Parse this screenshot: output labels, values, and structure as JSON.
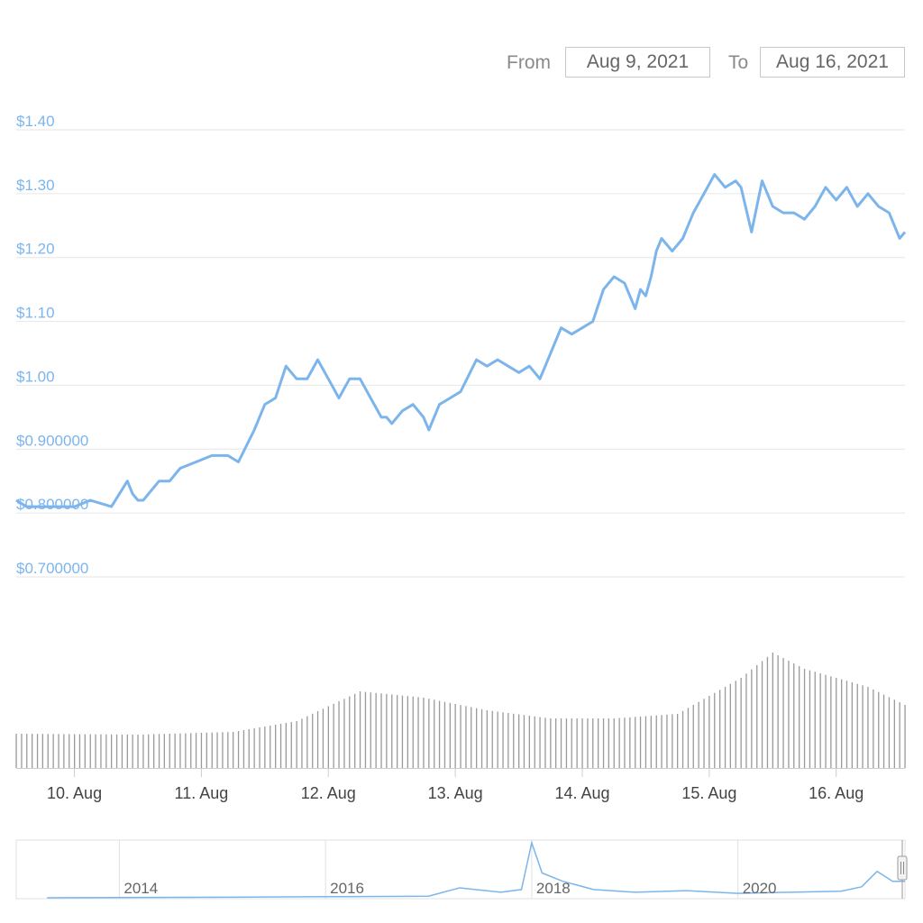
{
  "range_selector": {
    "from_label": "From",
    "from_value": "Aug 9, 2021",
    "to_label": "To",
    "to_value": "Aug 16, 2021"
  },
  "colors": {
    "price_line": "#7cb5ec",
    "grid": "#e6e6e6",
    "volume_bar": "#9a9a9a",
    "axis_text": "#444444",
    "navigator_series": "#7cb5ec"
  },
  "chart_data": [
    {
      "type": "line",
      "yaxis_ticks": [
        "$0.700000",
        "$0.800000",
        "$0.900000",
        "$1.00",
        "$1.10",
        "$1.20",
        "$1.30",
        "$1.40"
      ],
      "yaxis_tick_values": [
        0.7,
        0.8,
        0.9,
        1.0,
        1.1,
        1.2,
        1.3,
        1.4
      ],
      "ylim": [
        0.7,
        1.4
      ],
      "xaxis_ticks": [
        "10. Aug",
        "11. Aug",
        "12. Aug",
        "13. Aug",
        "14. Aug",
        "15. Aug",
        "16. Aug"
      ],
      "xaxis_tick_values": [
        "2021-08-10",
        "2021-08-11",
        "2021-08-12",
        "2021-08-13",
        "2021-08-14",
        "2021-08-15",
        "2021-08-16"
      ],
      "xlim": [
        "2021-08-09T13:00",
        "2021-08-16T13:00"
      ],
      "grid": true,
      "series": [
        {
          "x": [
            "2021-08-09T13:00",
            "2021-08-09T15:00",
            "2021-08-09T18:00",
            "2021-08-09T21:00",
            "2021-08-10T00:00",
            "2021-08-10T03:00",
            "2021-08-10T07:00",
            "2021-08-10T10:00",
            "2021-08-10T11:00",
            "2021-08-10T12:00",
            "2021-08-10T13:00",
            "2021-08-10T14:00",
            "2021-08-10T16:00",
            "2021-08-10T18:00",
            "2021-08-10T20:00",
            "2021-08-10T23:00",
            "2021-08-11T02:00",
            "2021-08-11T05:00",
            "2021-08-11T07:00",
            "2021-08-11T10:00",
            "2021-08-11T12:00",
            "2021-08-11T14:00",
            "2021-08-11T16:00",
            "2021-08-11T18:00",
            "2021-08-11T20:00",
            "2021-08-11T22:00",
            "2021-08-12T00:00",
            "2021-08-12T02:00",
            "2021-08-12T04:00",
            "2021-08-12T06:00",
            "2021-08-12T08:00",
            "2021-08-12T10:00",
            "2021-08-12T11:00",
            "2021-08-12T12:00",
            "2021-08-12T14:00",
            "2021-08-12T16:00",
            "2021-08-12T18:00",
            "2021-08-12T19:00",
            "2021-08-12T21:00",
            "2021-08-12T23:00",
            "2021-08-13T01:00",
            "2021-08-13T04:00",
            "2021-08-13T06:00",
            "2021-08-13T08:00",
            "2021-08-13T10:00",
            "2021-08-13T12:00",
            "2021-08-13T14:00",
            "2021-08-13T16:00",
            "2021-08-13T18:00",
            "2021-08-13T20:00",
            "2021-08-13T22:00",
            "2021-08-14T00:00",
            "2021-08-14T02:00",
            "2021-08-14T04:00",
            "2021-08-14T06:00",
            "2021-08-14T08:00",
            "2021-08-14T10:00",
            "2021-08-14T11:00",
            "2021-08-14T12:00",
            "2021-08-14T13:00",
            "2021-08-14T14:00",
            "2021-08-14T15:00",
            "2021-08-14T17:00",
            "2021-08-14T19:00",
            "2021-08-14T21:00",
            "2021-08-14T23:00",
            "2021-08-15T01:00",
            "2021-08-15T03:00",
            "2021-08-15T05:00",
            "2021-08-15T06:00",
            "2021-08-15T08:00",
            "2021-08-15T10:00",
            "2021-08-15T12:00",
            "2021-08-15T14:00",
            "2021-08-15T16:00",
            "2021-08-15T18:00",
            "2021-08-15T20:00",
            "2021-08-15T22:00",
            "2021-08-16T00:00",
            "2021-08-16T02:00",
            "2021-08-16T04:00",
            "2021-08-16T06:00",
            "2021-08-16T08:00",
            "2021-08-16T10:00",
            "2021-08-16T12:00",
            "2021-08-16T13:00"
          ],
          "values": [
            0.82,
            0.81,
            0.81,
            0.81,
            0.81,
            0.82,
            0.81,
            0.85,
            0.83,
            0.82,
            0.82,
            0.83,
            0.85,
            0.85,
            0.87,
            0.88,
            0.89,
            0.89,
            0.88,
            0.93,
            0.97,
            0.98,
            1.03,
            1.01,
            1.01,
            1.04,
            1.01,
            0.98,
            1.01,
            1.01,
            0.98,
            0.95,
            0.95,
            0.94,
            0.96,
            0.97,
            0.95,
            0.93,
            0.97,
            0.98,
            0.99,
            1.04,
            1.03,
            1.04,
            1.03,
            1.02,
            1.03,
            1.01,
            1.05,
            1.09,
            1.08,
            1.09,
            1.1,
            1.15,
            1.17,
            1.16,
            1.12,
            1.15,
            1.14,
            1.17,
            1.21,
            1.23,
            1.21,
            1.23,
            1.27,
            1.3,
            1.33,
            1.31,
            1.32,
            1.31,
            1.24,
            1.32,
            1.28,
            1.27,
            1.27,
            1.26,
            1.28,
            1.31,
            1.29,
            1.31,
            1.28,
            1.3,
            1.28,
            1.27,
            1.23,
            1.24
          ]
        }
      ]
    },
    {
      "type": "bar",
      "series": [
        {
          "x": [
            "2021-08-09T13:00",
            "2021-08-10T12:00",
            "2021-08-11T06:00",
            "2021-08-11T18:00",
            "2021-08-12T06:00",
            "2021-08-12T18:00",
            "2021-08-13T06:00",
            "2021-08-13T18:00",
            "2021-08-14T06:00",
            "2021-08-14T18:00",
            "2021-08-15T06:00",
            "2021-08-15T12:00",
            "2021-08-15T18:00",
            "2021-08-16T06:00",
            "2021-08-16T13:00"
          ],
          "values": [
            38,
            37,
            40,
            52,
            85,
            78,
            64,
            55,
            55,
            60,
            100,
            128,
            110,
            90,
            70
          ]
        }
      ]
    },
    {
      "type": "line",
      "xaxis_ticks": [
        "2014",
        "2016",
        "2018",
        "2020"
      ],
      "series": [
        {
          "x": [
            2013.3,
            2015.0,
            2016.0,
            2017.0,
            2017.3,
            2017.7,
            2017.9,
            2018.0,
            2018.1,
            2018.3,
            2018.6,
            2019.0,
            2019.5,
            2020.0,
            2020.5,
            2021.0,
            2021.2,
            2021.35,
            2021.5,
            2021.62
          ],
          "values": [
            0.0,
            0.01,
            0.02,
            0.03,
            0.18,
            0.1,
            0.15,
            1.0,
            0.45,
            0.3,
            0.15,
            0.1,
            0.13,
            0.08,
            0.1,
            0.12,
            0.2,
            0.48,
            0.3,
            0.3
          ]
        }
      ]
    }
  ]
}
